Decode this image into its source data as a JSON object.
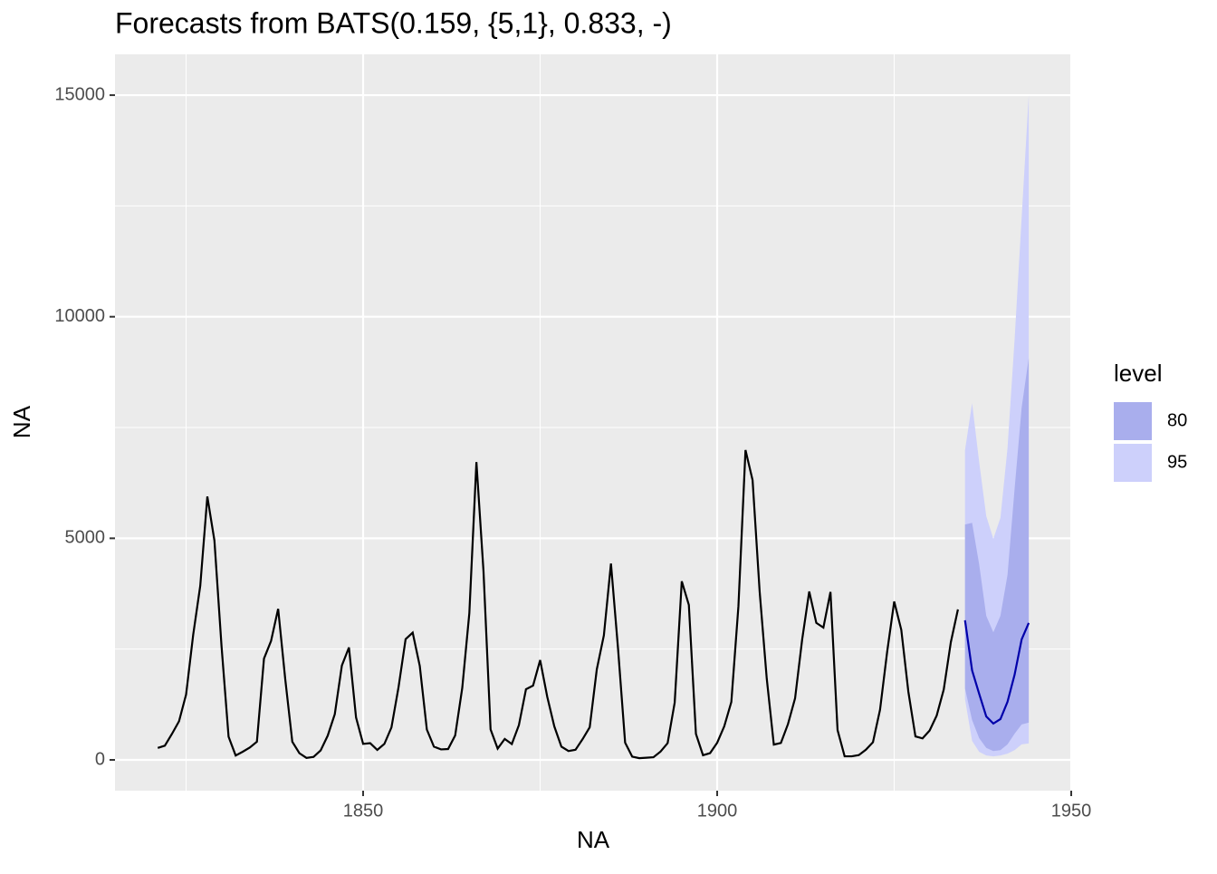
{
  "chart_data": {
    "type": "forecast",
    "title": "Forecasts from BATS(0.159, {5,1}, 0.833, -)",
    "x_label": "NA",
    "y_label": "NA",
    "x": [
      1821,
      1822,
      1823,
      1824,
      1825,
      1826,
      1827,
      1828,
      1829,
      1830,
      1831,
      1832,
      1833,
      1834,
      1835,
      1836,
      1837,
      1838,
      1839,
      1840,
      1841,
      1842,
      1843,
      1844,
      1845,
      1846,
      1847,
      1848,
      1849,
      1850,
      1851,
      1852,
      1853,
      1854,
      1855,
      1856,
      1857,
      1858,
      1859,
      1860,
      1861,
      1862,
      1863,
      1864,
      1865,
      1866,
      1867,
      1868,
      1869,
      1870,
      1871,
      1872,
      1873,
      1874,
      1875,
      1876,
      1877,
      1878,
      1879,
      1880,
      1881,
      1882,
      1883,
      1884,
      1885,
      1886,
      1887,
      1888,
      1889,
      1890,
      1891,
      1892,
      1893,
      1894,
      1895,
      1896,
      1897,
      1898,
      1899,
      1900,
      1901,
      1902,
      1903,
      1904,
      1905,
      1906,
      1907,
      1908,
      1909,
      1910,
      1911,
      1912,
      1913,
      1914,
      1915,
      1916,
      1917,
      1918,
      1919,
      1920,
      1921,
      1922,
      1923,
      1924,
      1925,
      1926,
      1927,
      1928,
      1929,
      1930,
      1931,
      1932,
      1933,
      1934
    ],
    "values": [
      269,
      321,
      585,
      871,
      1475,
      2821,
      3928,
      5943,
      4950,
      2577,
      523,
      98,
      184,
      279,
      409,
      2285,
      2685,
      3409,
      1824,
      409,
      151,
      45,
      68,
      213,
      546,
      1033,
      2129,
      2536,
      957,
      361,
      377,
      225,
      360,
      731,
      1638,
      2725,
      2871,
      2119,
      684,
      299,
      236,
      245,
      552,
      1623,
      3311,
      6721,
      4254,
      687,
      255,
      473,
      358,
      784,
      1594,
      1676,
      2251,
      1426,
      756,
      299,
      201,
      229,
      469,
      736,
      2042,
      2811,
      4431,
      2511,
      389,
      73,
      39,
      49,
      59,
      188,
      377,
      1292,
      4031,
      3495,
      587,
      105,
      153,
      387,
      758,
      1307,
      3465,
      6991,
      6313,
      3794,
      1836,
      345,
      382,
      808,
      1388,
      2713,
      3800,
      3091,
      2985,
      3790,
      674,
      81,
      80,
      108,
      229,
      399,
      1132,
      2432,
      3574,
      2935,
      1537,
      529,
      485,
      662,
      1000,
      1590,
      2657,
      3396
    ],
    "color": "#000000",
    "forecast": {
      "x": [
        1935,
        1936,
        1937,
        1938,
        1939,
        1940,
        1941,
        1942,
        1943,
        1944
      ],
      "mean": [
        3150,
        2020,
        1490,
        980,
        820,
        920,
        1310,
        1920,
        2720,
        3090
      ],
      "color": "#0000AA",
      "bands": [
        {
          "name": "95",
          "color": "#CDD0FB",
          "lower": [
            1370,
            430,
            180,
            100,
            80,
            100,
            140,
            220,
            350,
            370
          ],
          "upper": [
            6990,
            8050,
            6720,
            5500,
            4990,
            5460,
            7030,
            9480,
            12240,
            15000
          ]
        },
        {
          "name": "80",
          "color": "#A9AEED",
          "lower": [
            1610,
            900,
            490,
            270,
            200,
            220,
            350,
            590,
            800,
            840
          ],
          "upper": [
            5310,
            5350,
            4410,
            3250,
            2880,
            3250,
            4170,
            6110,
            7950,
            9070
          ]
        }
      ]
    },
    "legend_title": "level",
    "xlim": [
      1814.96,
      1949.87
    ],
    "ylim": [
      -695,
      15921
    ],
    "xticks": [
      1850,
      1900,
      1950
    ],
    "yticks": [
      0,
      5000,
      10000,
      15000
    ],
    "minor_xticks": [
      1825,
      1875,
      1925
    ],
    "minor_yticks": [
      2500,
      7500,
      12500
    ],
    "grid": true
  }
}
